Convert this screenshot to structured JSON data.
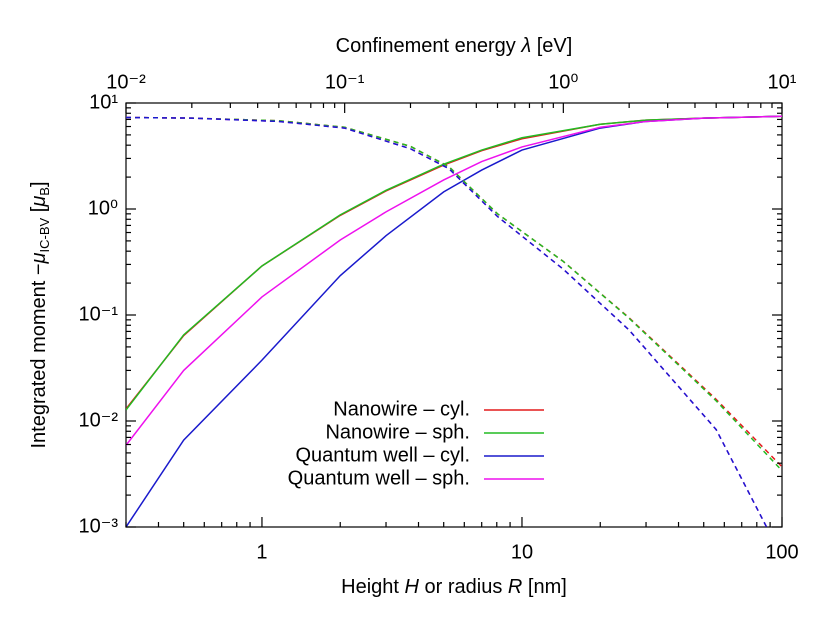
{
  "chart_data": {
    "type": "line",
    "x_label_parts": [
      "Height ",
      "H",
      " or radius ",
      "R",
      " [nm]"
    ],
    "x2_label_parts": [
      "Confinement energy ",
      "λ",
      " [eV]"
    ],
    "y_label_parts": [
      "Integrated moment −",
      "μ",
      "IC-BV",
      " [",
      "μ",
      "B",
      "]"
    ],
    "log_x": true,
    "log_x2": true,
    "log_y": true,
    "xlim": [
      0.3,
      100
    ],
    "xticks": [
      1,
      10,
      100
    ],
    "x2lim": [
      0.01,
      10
    ],
    "x2ticks": [
      {
        "value": 0.01,
        "label": "10⁻²"
      },
      {
        "value": 0.1,
        "label": "10⁻¹"
      },
      {
        "value": 1,
        "label": "10⁰"
      },
      {
        "value": 10,
        "label": "10¹"
      }
    ],
    "ylim": [
      0.001,
      10
    ],
    "yticks": [
      {
        "value": 0.001,
        "label": "10⁻³"
      },
      {
        "value": 0.01,
        "label": "10⁻²"
      },
      {
        "value": 0.1,
        "label": "10⁻¹"
      },
      {
        "value": 1,
        "label": "10⁰"
      },
      {
        "value": 10,
        "label": "10¹"
      }
    ],
    "legend": "lower-center",
    "series": [
      {
        "name": "Nanowire – cyl.",
        "color": "#e41a1c",
        "x": [
          0.3,
          0.5,
          1,
          2,
          3,
          5,
          7,
          10,
          20,
          30,
          50,
          100
        ],
        "values": [
          0.013,
          0.064,
          0.29,
          0.87,
          1.48,
          2.6,
          3.55,
          4.6,
          6.3,
          6.9,
          7.2,
          7.5
        ]
      },
      {
        "name": "Nanowire – sph.",
        "color": "#22bb22",
        "x": [
          0.3,
          0.5,
          1,
          2,
          3,
          5,
          7,
          10,
          20,
          30,
          50,
          100
        ],
        "values": [
          0.0127,
          0.065,
          0.29,
          0.88,
          1.5,
          2.65,
          3.6,
          4.7,
          6.3,
          6.9,
          7.2,
          7.5
        ]
      },
      {
        "name": "Quantum well – cyl.",
        "color": "#1a1acc",
        "x": [
          0.3,
          0.5,
          1,
          2,
          3,
          5,
          7,
          10,
          20,
          30,
          50,
          100
        ],
        "values": [
          0.001,
          0.0066,
          0.0375,
          0.235,
          0.56,
          1.45,
          2.33,
          3.6,
          5.8,
          6.7,
          7.2,
          7.5
        ]
      },
      {
        "name": "Quantum well – sph.",
        "color": "#ee11ee",
        "x": [
          0.3,
          0.5,
          1,
          2,
          3,
          5,
          7,
          10,
          20,
          30,
          50,
          100
        ],
        "values": [
          0.0059,
          0.03,
          0.148,
          0.51,
          0.94,
          1.88,
          2.8,
          3.85,
          5.9,
          6.7,
          7.2,
          7.5
        ]
      },
      {
        "color": "#e41a1c",
        "axis": "x2",
        "dashed": true,
        "x": [
          0.01,
          0.02,
          0.05,
          0.1,
          0.2,
          0.3,
          0.5,
          1,
          2,
          5,
          10
        ],
        "values": [
          7.3,
          7.2,
          6.8,
          5.9,
          3.9,
          2.5,
          0.9,
          0.32,
          0.094,
          0.016,
          0.0037
        ]
      },
      {
        "color": "#22bb22",
        "axis": "x2",
        "dashed": true,
        "x": [
          0.01,
          0.02,
          0.05,
          0.1,
          0.2,
          0.3,
          0.5,
          1,
          2,
          5,
          10
        ],
        "values": [
          7.3,
          7.2,
          6.8,
          5.9,
          3.9,
          2.5,
          0.9,
          0.32,
          0.093,
          0.0155,
          0.0034
        ]
      },
      {
        "color": "#ee11ee",
        "axis": "x2",
        "dashed": true,
        "x": [
          0.01,
          0.02,
          0.05,
          0.1,
          0.2,
          0.3,
          0.5,
          1,
          2,
          5,
          8.5
        ],
        "values": [
          7.3,
          7.2,
          6.7,
          5.8,
          3.7,
          2.4,
          0.85,
          0.27,
          0.072,
          0.0083,
          0.001
        ]
      },
      {
        "color": "#1a1acc",
        "axis": "x2",
        "dashed": true,
        "x": [
          0.01,
          0.02,
          0.05,
          0.1,
          0.2,
          0.3,
          0.5,
          1,
          2,
          5,
          8.5
        ],
        "values": [
          7.3,
          7.2,
          6.7,
          5.8,
          3.7,
          2.4,
          0.85,
          0.27,
          0.072,
          0.0083,
          0.001
        ]
      }
    ]
  }
}
